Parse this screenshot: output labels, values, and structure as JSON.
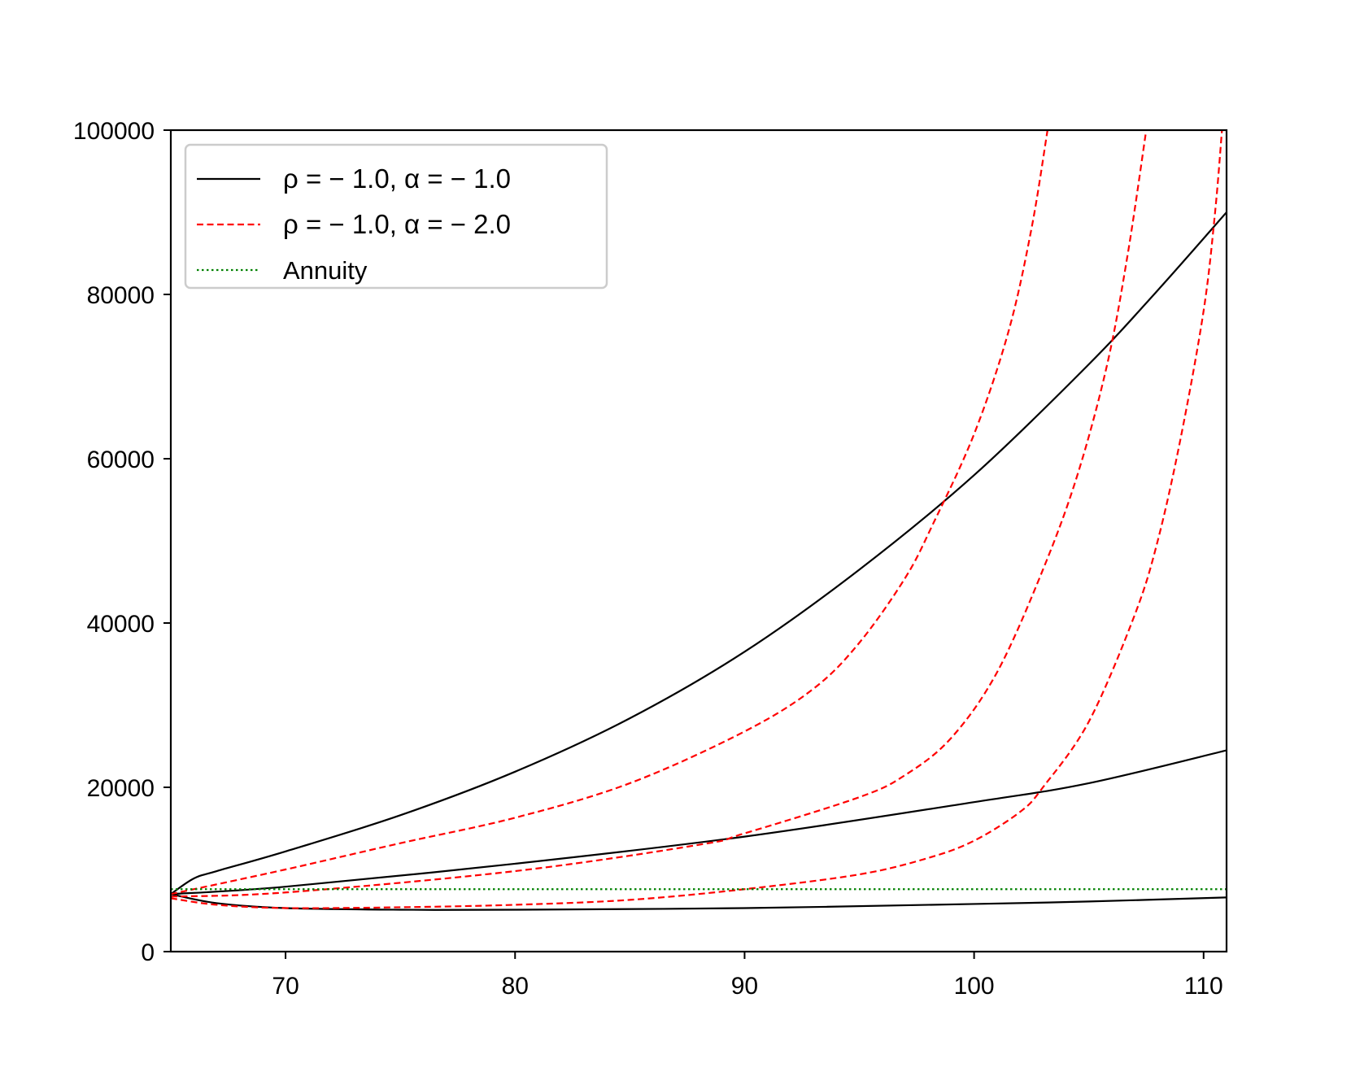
{
  "chart_data": {
    "type": "line",
    "title": "",
    "xlabel": "",
    "ylabel": "",
    "xlim": [
      65,
      111
    ],
    "ylim": [
      0,
      100000
    ],
    "x_ticks": [
      70,
      80,
      90,
      100,
      110
    ],
    "y_ticks": [
      0,
      20000,
      40000,
      60000,
      80000,
      100000
    ],
    "x_tick_labels": [
      "70",
      "80",
      "90",
      "100",
      "110"
    ],
    "y_tick_labels": [
      "0",
      "20000",
      "40000",
      "60000",
      "80000",
      "100000"
    ],
    "grid": false,
    "legend_position": "top-left",
    "legend": [
      {
        "label": "ρ = − 1.0, α = − 1.0",
        "color": "#000000",
        "style": "solid"
      },
      {
        "label": "ρ = − 1.0, α = − 2.0",
        "color": "#ff0000",
        "style": "dashed"
      },
      {
        "label": "Annuity",
        "color": "#008000",
        "style": "dotted"
      }
    ],
    "series": [
      {
        "group": 0,
        "color": "#000000",
        "style": "solid",
        "x": [
          65,
          66,
          67,
          70,
          75,
          80,
          85,
          90,
          95,
          100,
          105,
          108,
          111
        ],
        "y": [
          7000,
          8900,
          9800,
          12200,
          16600,
          21900,
          28400,
          36500,
          46500,
          58000,
          71500,
          80500,
          90000
        ]
      },
      {
        "group": 0,
        "color": "#000000",
        "style": "solid",
        "x": [
          65,
          70,
          80,
          90,
          100,
          105,
          111
        ],
        "y": [
          7000,
          7900,
          10700,
          14000,
          18200,
          20500,
          24500
        ]
      },
      {
        "group": 0,
        "color": "#000000",
        "style": "solid",
        "x": [
          65,
          67,
          70,
          75,
          80,
          90,
          100,
          105,
          111
        ],
        "y": [
          7000,
          5900,
          5300,
          5100,
          5100,
          5300,
          5800,
          6100,
          6600
        ]
      },
      {
        "group": 1,
        "color": "#ff0000",
        "style": "dashed",
        "x": [
          65,
          70,
          75,
          80,
          85,
          90,
          93,
          95,
          97,
          98.2,
          100,
          101.5,
          102.5,
          103.2
        ],
        "y": [
          7000,
          10000,
          13200,
          16300,
          20500,
          26800,
          32000,
          37600,
          45500,
          52000,
          63000,
          75500,
          88000,
          100000
        ]
      },
      {
        "group": 1,
        "color": "#ff0000",
        "style": "dashed",
        "x": [
          65,
          70,
          80,
          88,
          90,
          95,
          97,
          99,
          101,
          103,
          104.5,
          105.8,
          106.7,
          107.5
        ],
        "y": [
          6700,
          7200,
          9800,
          13000,
          14400,
          18800,
          21500,
          26000,
          34000,
          46500,
          58000,
          71500,
          85000,
          100000
        ]
      },
      {
        "group": 1,
        "color": "#ff0000",
        "style": "dashed",
        "x": [
          65,
          67,
          70,
          75,
          80,
          85,
          90,
          95,
          98,
          100,
          102,
          103,
          105,
          107,
          108,
          109,
          110,
          110.5,
          110.8
        ],
        "y": [
          6500,
          5700,
          5300,
          5400,
          5700,
          6300,
          7600,
          9400,
          11400,
          13500,
          17000,
          20000,
          28000,
          41000,
          50000,
          62500,
          78000,
          90000,
          100000
        ]
      },
      {
        "group": 2,
        "color": "#008000",
        "style": "dotted",
        "x": [
          65,
          111
        ],
        "y": [
          7600,
          7600
        ]
      }
    ]
  }
}
